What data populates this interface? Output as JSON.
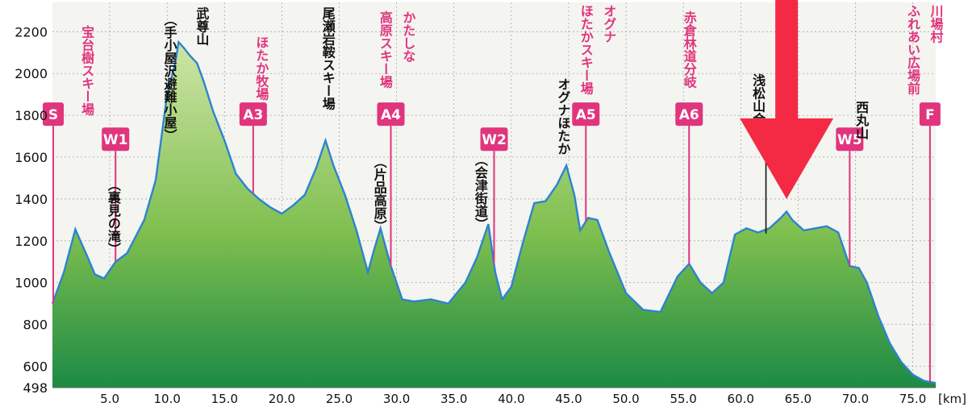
{
  "chart_data": {
    "type": "area",
    "x_unit": "[km]",
    "xlim": [
      0,
      77
    ],
    "ylim": [
      498,
      2340
    ],
    "x_ticks": [
      {
        "value": 5,
        "label": "5.0"
      },
      {
        "value": 10,
        "label": "10.0"
      },
      {
        "value": 15,
        "label": "15.0"
      },
      {
        "value": 20,
        "label": "20.0"
      },
      {
        "value": 25,
        "label": "25.0"
      },
      {
        "value": 30,
        "label": "30.0"
      },
      {
        "value": 35,
        "label": "35.0"
      },
      {
        "value": 40,
        "label": "40.0"
      },
      {
        "value": 45,
        "label": "45.0"
      },
      {
        "value": 50,
        "label": "50.0"
      },
      {
        "value": 55,
        "label": "55.0"
      },
      {
        "value": 60,
        "label": "60.0"
      },
      {
        "value": 65,
        "label": "65.0"
      },
      {
        "value": 70,
        "label": "70.0"
      },
      {
        "value": 75,
        "label": "75.0"
      }
    ],
    "y_ticks": [
      {
        "value": 498,
        "label": "498"
      },
      {
        "value": 600,
        "label": "600"
      },
      {
        "value": 800,
        "label": "800"
      },
      {
        "value": 1000,
        "label": "1000"
      },
      {
        "value": 1200,
        "label": "1200"
      },
      {
        "value": 1400,
        "label": "1400"
      },
      {
        "value": 1600,
        "label": "1600"
      },
      {
        "value": 1800,
        "label": "1800"
      },
      {
        "value": 2000,
        "label": "2000"
      },
      {
        "value": 2200,
        "label": "2200"
      }
    ],
    "grid": true,
    "profile": {
      "x": [
        0,
        1,
        2,
        3,
        3.7,
        4.5,
        5.5,
        6.5,
        8,
        9,
        10,
        10.7,
        11,
        11.5,
        12,
        12.6,
        13.2,
        14,
        15,
        16,
        17,
        18,
        19,
        20,
        21,
        22,
        23,
        23.8,
        24.5,
        25.5,
        26.5,
        27.5,
        28,
        28.6,
        29.5,
        30.5,
        31.5,
        33,
        34.5,
        36,
        37,
        38,
        38.6,
        39.2,
        40,
        41,
        42,
        43,
        44,
        44.8,
        45.5,
        46,
        46.7,
        47.5,
        48.5,
        50,
        51.5,
        53,
        54.5,
        55.5,
        56.5,
        57.5,
        58.5,
        59.5,
        60.5,
        61.5,
        62.5,
        63.5,
        64,
        64.5,
        65.5,
        66.5,
        67.5,
        68.5,
        69,
        69.5,
        70.3,
        71,
        72,
        73,
        74,
        75,
        76,
        77
      ],
      "y": [
        900,
        1050,
        1255,
        1130,
        1040,
        1020,
        1100,
        1140,
        1300,
        1490,
        1900,
        2050,
        2150,
        2120,
        2085,
        2050,
        1960,
        1820,
        1680,
        1520,
        1450,
        1400,
        1360,
        1330,
        1370,
        1420,
        1550,
        1680,
        1560,
        1420,
        1250,
        1050,
        1150,
        1260,
        1080,
        920,
        910,
        920,
        900,
        1000,
        1120,
        1280,
        1050,
        920,
        980,
        1190,
        1380,
        1390,
        1470,
        1560,
        1420,
        1250,
        1310,
        1300,
        1150,
        950,
        870,
        860,
        1030,
        1090,
        1000,
        950,
        1000,
        1230,
        1260,
        1240,
        1260,
        1310,
        1340,
        1300,
        1250,
        1260,
        1270,
        1240,
        1160,
        1080,
        1070,
        1000,
        840,
        710,
        620,
        560,
        530,
        520
      ]
    },
    "checkpoints": [
      {
        "x": 0,
        "code": "S",
        "y_top": 1750
      },
      {
        "x": 5.5,
        "code": "W1",
        "y_top": 1630
      },
      {
        "x": 17.5,
        "code": "A3",
        "y_top": 1750
      },
      {
        "x": 29.5,
        "code": "A4",
        "y_top": 1750
      },
      {
        "x": 38.5,
        "code": "W2",
        "y_top": 1630
      },
      {
        "x": 46.5,
        "code": "A5",
        "y_top": 1750
      },
      {
        "x": 55.5,
        "code": "A6",
        "y_top": 1750
      },
      {
        "x": 69.5,
        "code": "W5",
        "y_top": 1630
      },
      {
        "x": 76.5,
        "code": "F",
        "y_top": 1750
      }
    ],
    "labels": [
      {
        "text": "宝台樹スキー場",
        "color": "pink",
        "col_x": 3,
        "top_y": 2230
      },
      {
        "text": "（裏見の滝）",
        "color": "black",
        "col_x": 5.3,
        "top_y": 1500
      },
      {
        "text": "（手小屋沢避難小屋）",
        "color": "black",
        "col_x": 10.2,
        "top_y": 2290
      },
      {
        "text": "武尊山",
        "color": "black",
        "col_x": 13,
        "top_y": 2320
      },
      {
        "text": "ほたか牧場",
        "color": "pink",
        "col_x": 18.2,
        "top_y": 2180
      },
      {
        "text": "尾瀬岩鞍スキー場",
        "color": "black",
        "col_x": 24,
        "top_y": 2320
      },
      {
        "text": "かたしな",
        "color": "pink",
        "col_x": 31,
        "top_y": 2300
      },
      {
        "text": "高原スキー場",
        "color": "pink",
        "col_x": 29,
        "top_y": 2300
      },
      {
        "text": "（片品高原）",
        "color": "black",
        "col_x": 28.5,
        "top_y": 1610
      },
      {
        "text": "（会津街道）",
        "color": "black",
        "col_x": 37.3,
        "top_y": 1620
      },
      {
        "text": "オグナほたか",
        "color": "black",
        "col_x": 44.5,
        "top_y": 1980
      },
      {
        "text": "オグナ",
        "color": "pink",
        "col_x": 48.5,
        "top_y": 2330
      },
      {
        "text": "ほたかスキー場",
        "color": "pink",
        "col_x": 46.5,
        "top_y": 2330
      },
      {
        "text": "赤倉林道分岐",
        "color": "pink",
        "col_x": 55.5,
        "top_y": 2300
      },
      {
        "text": "浅松山合流",
        "color": "black",
        "col_x": 61.5,
        "top_y": 2000
      },
      {
        "text": "西丸山",
        "color": "black",
        "col_x": 70.5,
        "top_y": 1870
      },
      {
        "text": "川場村",
        "color": "pink",
        "col_x": 77,
        "top_y": 2330
      },
      {
        "text": "ふれあい広場前",
        "color": "pink",
        "col_x": 75,
        "top_y": 2330
      }
    ],
    "label_leaders": [
      {
        "x": 62.2,
        "y_from": 1700,
        "y_to": 1235
      }
    ],
    "annotation_arrow": {
      "x": 64,
      "y_top": 2400,
      "y_tip": 1400
    }
  },
  "colors": {
    "pink": "#e0357d",
    "black": "#111111",
    "area_top": "#cfe5a6",
    "area_mid": "#7fbf4f",
    "area_bottom": "#1c8a44",
    "outline": "#2c84cf",
    "arrow": "#f42a45",
    "grid": "#9fa9b0"
  }
}
